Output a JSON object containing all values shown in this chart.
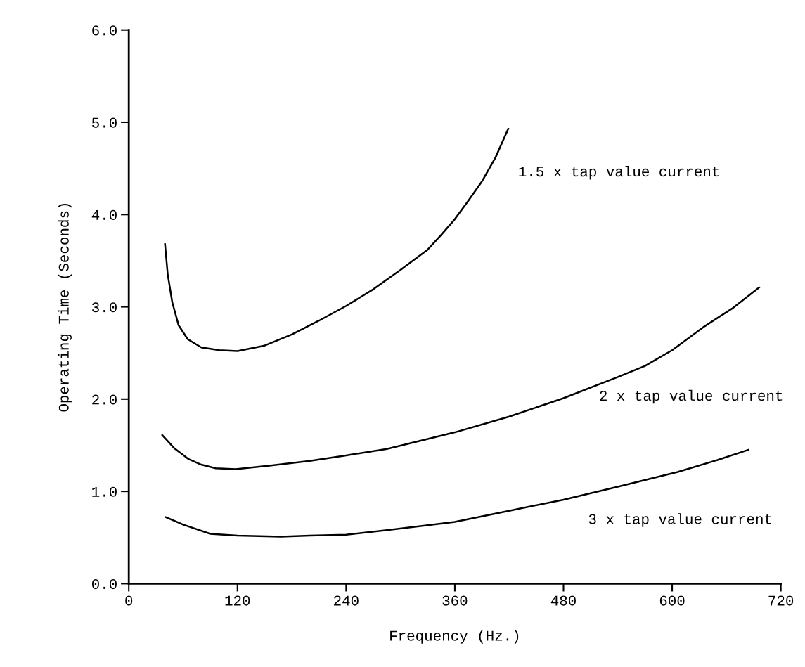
{
  "chart_data": {
    "type": "line",
    "xlabel": "Frequency (Hz.)",
    "ylabel": "Operating Time (Seconds)",
    "xlim": [
      0,
      720
    ],
    "xticks": [
      0,
      120,
      240,
      360,
      480,
      600,
      720
    ],
    "ylim": [
      0,
      6
    ],
    "yticks": [
      {
        "value": 0,
        "label": "0.0"
      },
      {
        "value": 1,
        "label": "1.0"
      },
      {
        "value": 2,
        "label": "2.0"
      },
      {
        "value": 3,
        "label": "3.0"
      },
      {
        "value": 4,
        "label": "4.0"
      },
      {
        "value": 5,
        "label": "5.0"
      },
      {
        "value": 6,
        "label": "6.0"
      }
    ],
    "grid": false,
    "legend": false,
    "marker": "none",
    "line_style": "solid",
    "series": [
      {
        "name": "1.5 x tap value current",
        "color": "#000000",
        "x": [
          40,
          43,
          48,
          55,
          65,
          80,
          100,
          120,
          150,
          180,
          210,
          240,
          270,
          300,
          330,
          345,
          360,
          375,
          390,
          405,
          419
        ],
        "values": [
          3.68,
          3.35,
          3.05,
          2.8,
          2.65,
          2.56,
          2.53,
          2.52,
          2.58,
          2.7,
          2.85,
          3.01,
          3.19,
          3.4,
          3.62,
          3.78,
          3.95,
          4.15,
          4.36,
          4.62,
          4.93
        ]
      },
      {
        "name": "2 x tap value current",
        "color": "#000000",
        "x": [
          37,
          50,
          66,
          80,
          96,
          118,
          157,
          200,
          240,
          285,
          327,
          360,
          420,
          480,
          540,
          570,
          600,
          636,
          666,
          696
        ],
        "values": [
          1.61,
          1.47,
          1.35,
          1.29,
          1.25,
          1.24,
          1.28,
          1.33,
          1.39,
          1.46,
          1.56,
          1.64,
          1.81,
          2.01,
          2.24,
          2.36,
          2.53,
          2.79,
          2.98,
          3.21
        ]
      },
      {
        "name": "3 x tap value current",
        "color": "#000000",
        "x": [
          41,
          60,
          90,
          120,
          168,
          200,
          240,
          285,
          327,
          360,
          420,
          480,
          540,
          606,
          650,
          684
        ],
        "values": [
          0.72,
          0.64,
          0.54,
          0.52,
          0.51,
          0.52,
          0.53,
          0.58,
          0.63,
          0.67,
          0.79,
          0.91,
          1.05,
          1.21,
          1.34,
          1.45
        ]
      }
    ]
  }
}
